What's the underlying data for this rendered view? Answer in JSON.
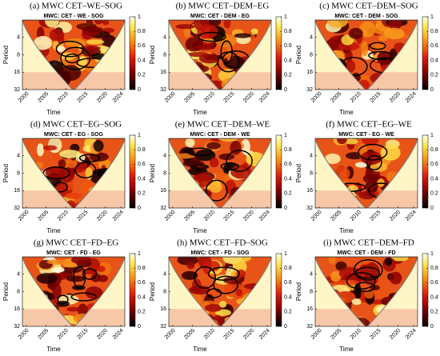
{
  "chart_data": [
    {
      "type": "heatmap",
      "title": "(a) MWC CET–WE–SOG",
      "subtitle": "MWC: CET - WE - SOG",
      "xlabel": "Time",
      "ylabel": "Period",
      "xlim": [
        1999,
        2025
      ],
      "xticks": [
        2000,
        2005,
        2010,
        2015,
        2020,
        2024
      ],
      "ylim": [
        2,
        32
      ],
      "yticks": [
        4,
        8,
        16,
        32
      ],
      "y_scale": "log",
      "colorbar_lim": [
        0,
        1
      ],
      "colorbar_ticks": [
        0,
        0.2,
        0.4,
        0.6,
        0.8,
        1
      ]
    },
    {
      "type": "heatmap",
      "title": "(b) MWC CET–DEM–EG",
      "subtitle": "MWC: CET - DEM - EG",
      "xlabel": "Time",
      "ylabel": "Period",
      "xlim": [
        1999,
        2025
      ],
      "xticks": [
        2000,
        2005,
        2010,
        2015,
        2020,
        2024
      ],
      "ylim": [
        2,
        32
      ],
      "yticks": [
        4,
        8,
        16,
        32
      ],
      "y_scale": "log",
      "colorbar_lim": [
        0,
        1
      ],
      "colorbar_ticks": [
        0,
        0.2,
        0.4,
        0.6,
        0.8,
        1
      ]
    },
    {
      "type": "heatmap",
      "title": "(c) MWC CET–DEM–SOG",
      "subtitle": "MWC: CET - DEM - SOG",
      "xlabel": "Time",
      "ylabel": "Period",
      "xlim": [
        1999,
        2025
      ],
      "xticks": [
        2000,
        2005,
        2010,
        2015,
        2020,
        2024
      ],
      "ylim": [
        2,
        32
      ],
      "yticks": [
        4,
        8,
        16,
        32
      ],
      "y_scale": "log",
      "colorbar_lim": [
        0,
        1
      ],
      "colorbar_ticks": [
        0,
        0.2,
        0.4,
        0.6,
        0.8,
        1
      ]
    },
    {
      "type": "heatmap",
      "title": "(d) MWC CET–EG–SOG",
      "subtitle": "MWC: CET - EG - SOG",
      "xlabel": "Time",
      "ylabel": "Period",
      "xlim": [
        1999,
        2025
      ],
      "xticks": [
        2000,
        2005,
        2010,
        2015,
        2020,
        2024
      ],
      "ylim": [
        2,
        32
      ],
      "yticks": [
        4,
        8,
        16,
        32
      ],
      "y_scale": "log",
      "colorbar_lim": [
        0,
        1
      ],
      "colorbar_ticks": [
        0,
        0.2,
        0.4,
        0.6,
        0.8,
        1
      ]
    },
    {
      "type": "heatmap",
      "title": "(e) MWC CET–DEM–WE",
      "subtitle": "MWC: CET - DEM - WE",
      "xlabel": "Time",
      "ylabel": "Period",
      "xlim": [
        1999,
        2025
      ],
      "xticks": [
        2000,
        2005,
        2010,
        2015,
        2020,
        2024
      ],
      "ylim": [
        2,
        32
      ],
      "yticks": [
        4,
        8,
        16,
        32
      ],
      "y_scale": "log",
      "colorbar_lim": [
        0,
        1
      ],
      "colorbar_ticks": [
        0,
        0.2,
        0.4,
        0.6,
        0.8,
        1
      ]
    },
    {
      "type": "heatmap",
      "title": "(f) MWC CET–EG–WE",
      "subtitle": "MWC: CET - EG - WE",
      "xlabel": "Time",
      "ylabel": "Period",
      "xlim": [
        1999,
        2025
      ],
      "xticks": [
        2000,
        2005,
        2010,
        2015,
        2020,
        2024
      ],
      "ylim": [
        2,
        32
      ],
      "yticks": [
        4,
        8,
        16,
        32
      ],
      "y_scale": "log",
      "colorbar_lim": [
        0,
        1
      ],
      "colorbar_ticks": [
        0,
        0.2,
        0.4,
        0.6,
        0.8,
        1
      ]
    },
    {
      "type": "heatmap",
      "title": "(g) MWC CET–FD–EG",
      "subtitle": "MWC: CET - FD - EG",
      "xlabel": "Time",
      "ylabel": "Period",
      "xlim": [
        1999,
        2025
      ],
      "xticks": [
        2000,
        2005,
        2010,
        2015,
        2020,
        2024
      ],
      "ylim": [
        2,
        32
      ],
      "yticks": [
        4,
        8,
        16,
        32
      ],
      "y_scale": "log",
      "colorbar_lim": [
        0,
        1
      ],
      "colorbar_ticks": [
        0,
        0.2,
        0.4,
        0.6,
        0.8,
        1
      ]
    },
    {
      "type": "heatmap",
      "title": "(h) MWC CET–FD–SOG",
      "subtitle": "MWC: CET - FD - SOG",
      "xlabel": "Time",
      "ylabel": "Period",
      "xlim": [
        1999,
        2025
      ],
      "xticks": [
        2000,
        2005,
        2010,
        2015,
        2020,
        2024
      ],
      "ylim": [
        2,
        32
      ],
      "yticks": [
        4,
        8,
        16,
        32
      ],
      "y_scale": "log",
      "colorbar_lim": [
        0,
        1
      ],
      "colorbar_ticks": [
        0,
        0.2,
        0.4,
        0.6,
        0.8,
        1
      ]
    },
    {
      "type": "heatmap",
      "title": "(i) MWC CET–DEM–FD",
      "subtitle": "MWC: CET - DEM - FD",
      "xlabel": "Time",
      "ylabel": "Period",
      "xlim": [
        1999,
        2025
      ],
      "xticks": [
        2000,
        2005,
        2010,
        2015,
        2020,
        2024
      ],
      "ylim": [
        2,
        32
      ],
      "yticks": [
        4,
        8,
        16,
        32
      ],
      "y_scale": "log",
      "colorbar_lim": [
        0,
        1
      ],
      "colorbar_ticks": [
        0,
        0.2,
        0.4,
        0.6,
        0.8,
        1
      ]
    }
  ]
}
